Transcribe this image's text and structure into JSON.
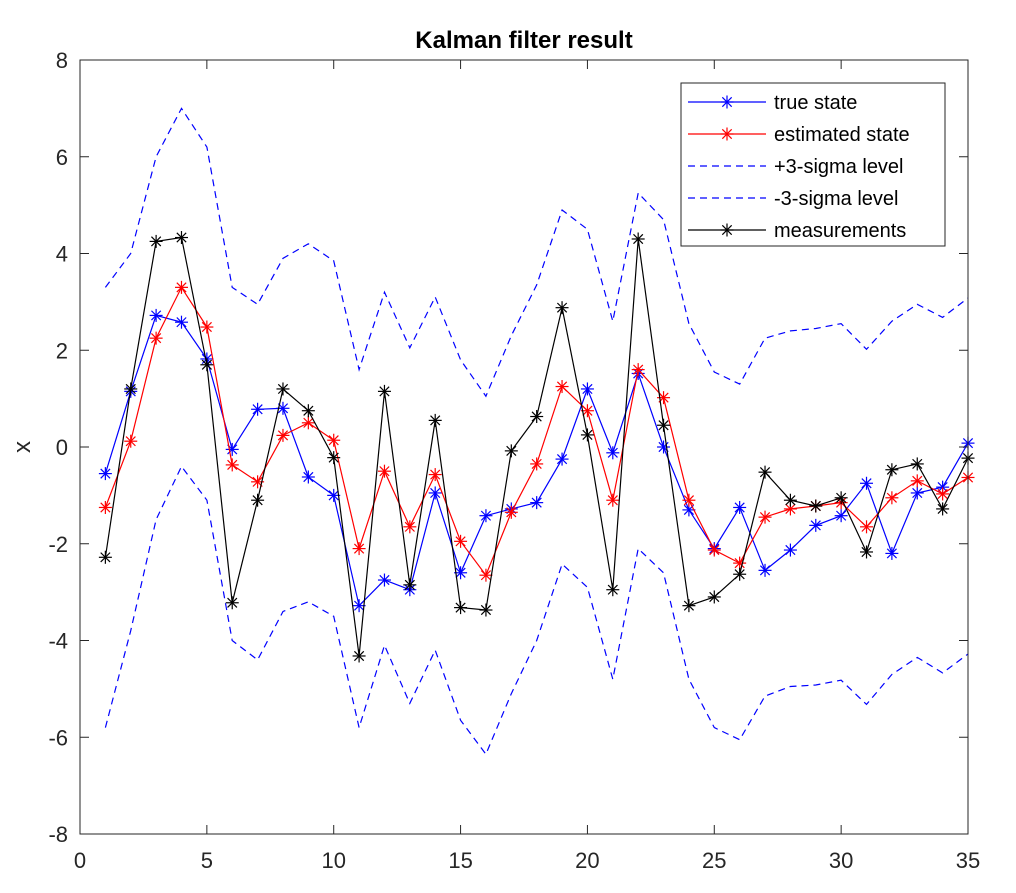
{
  "chart_data": {
    "type": "line",
    "title": "Kalman filter result",
    "xlabel": "",
    "ylabel": "x",
    "xlim": [
      0,
      35
    ],
    "ylim": [
      -8,
      8
    ],
    "xticks": [
      0,
      5,
      10,
      15,
      20,
      25,
      30,
      35
    ],
    "yticks": [
      -8,
      -6,
      -4,
      -2,
      0,
      2,
      4,
      6,
      8
    ],
    "grid": false,
    "legend_position": "top-right",
    "x": [
      1,
      2,
      3,
      4,
      5,
      6,
      7,
      8,
      9,
      10,
      11,
      12,
      13,
      14,
      15,
      16,
      17,
      18,
      19,
      20,
      21,
      22,
      23,
      24,
      25,
      26,
      27,
      28,
      29,
      30,
      31,
      32,
      33,
      34,
      35
    ],
    "series": [
      {
        "name": "true state",
        "color": "#0000ff",
        "line": "solid",
        "marker": "star",
        "values": [
          -0.55,
          1.15,
          2.72,
          2.58,
          1.82,
          -0.05,
          0.78,
          0.8,
          -0.62,
          -1.0,
          -3.28,
          -2.75,
          -2.95,
          -0.95,
          -2.6,
          -1.42,
          -1.28,
          -1.15,
          -0.25,
          1.2,
          -0.12,
          1.52,
          0.0,
          -1.3,
          -2.1,
          -1.25,
          -2.55,
          -2.13,
          -1.62,
          -1.42,
          -0.75,
          -2.2,
          -0.95,
          -0.83,
          0.08
        ]
      },
      {
        "name": "estimated state",
        "color": "#ff0000",
        "line": "solid",
        "marker": "star",
        "values": [
          -1.25,
          0.12,
          2.25,
          3.3,
          2.48,
          -0.37,
          -0.72,
          0.24,
          0.5,
          0.14,
          -2.1,
          -0.5,
          -1.65,
          -0.57,
          -1.95,
          -2.65,
          -1.35,
          -0.35,
          1.25,
          0.75,
          -1.1,
          1.6,
          1.02,
          -1.1,
          -2.13,
          -2.4,
          -1.45,
          -1.28,
          -1.22,
          -1.15,
          -1.65,
          -1.05,
          -0.7,
          -0.97,
          -0.63
        ]
      },
      {
        "name": "+3-sigma level",
        "color": "#0000ff",
        "line": "dashed",
        "marker": "none",
        "values": [
          3.3,
          4.0,
          6.0,
          7.0,
          6.2,
          3.3,
          2.95,
          3.9,
          4.2,
          3.85,
          1.6,
          3.2,
          2.05,
          3.1,
          1.8,
          1.05,
          2.3,
          3.35,
          4.9,
          4.5,
          2.6,
          5.25,
          4.7,
          2.55,
          1.55,
          1.3,
          2.25,
          2.4,
          2.45,
          2.55,
          2.02,
          2.6,
          2.95,
          2.68,
          3.08
        ]
      },
      {
        "name": "-3-sigma level",
        "color": "#0000ff",
        "line": "dashed",
        "marker": "none",
        "values": [
          -5.8,
          -3.8,
          -1.5,
          -0.4,
          -1.1,
          -4.0,
          -4.4,
          -3.4,
          -3.2,
          -3.5,
          -5.8,
          -4.1,
          -5.3,
          -4.2,
          -5.65,
          -6.35,
          -5.1,
          -4.0,
          -2.42,
          -2.9,
          -4.8,
          -2.1,
          -2.6,
          -4.8,
          -5.8,
          -6.05,
          -5.15,
          -4.95,
          -4.92,
          -4.82,
          -5.32,
          -4.7,
          -4.35,
          -4.67,
          -4.28
        ]
      },
      {
        "name": "measurements",
        "color": "#000000",
        "line": "solid",
        "marker": "star",
        "values": [
          -2.28,
          1.2,
          4.25,
          4.33,
          1.7,
          -3.22,
          -1.1,
          1.2,
          0.75,
          -0.22,
          -4.32,
          1.15,
          -2.85,
          0.55,
          -3.32,
          -3.37,
          -0.08,
          0.63,
          2.88,
          0.25,
          -2.95,
          4.3,
          0.45,
          -3.28,
          -3.1,
          -2.63,
          -0.52,
          -1.1,
          -1.22,
          -1.05,
          -2.17,
          -0.47,
          -0.35,
          -1.28,
          -0.23
        ]
      }
    ]
  }
}
